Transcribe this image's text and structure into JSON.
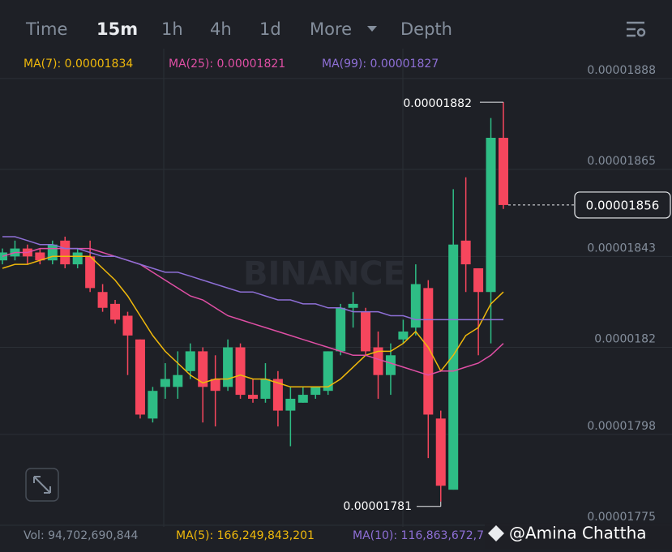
{
  "tabs": [
    "Time",
    "15m",
    "1h",
    "4h",
    "1d",
    "More",
    "Depth"
  ],
  "watermark": "BINANCE",
  "credit": "@Amina Chattha",
  "volume": {
    "vol": "Vol: 94,702,690,844",
    "ma5": "MA(5): 166,249,843,201",
    "ma10": "MA(10): 116,863,672,7"
  },
  "chart_data": {
    "type": "candlestick",
    "up_color": "#2ebd85",
    "down_color": "#f6465d",
    "ylim": [
      1.7746e-05,
      1.8935e-05
    ],
    "yticks": [
      1.888e-05,
      1.865e-05,
      1.843e-05,
      1.82e-05,
      1.798e-05,
      1.775e-05
    ],
    "grid": true,
    "open": [
      1.842e-05,
      1.843e-05,
      1.845e-05,
      1.844e-05,
      1.842e-05,
      1.847e-05,
      1.841e-05,
      1.843e-05,
      1.834e-05,
      1.831e-05,
      1.828e-05,
      1.822e-05,
      1.802e-05,
      1.81e-05,
      1.81e-05,
      1.814e-05,
      1.819e-05,
      1.812e-05,
      1.81e-05,
      1.82e-05,
      1.808e-05,
      1.807e-05,
      1.812e-05,
      1.804e-05,
      1.806e-05,
      1.808e-05,
      1.809e-05,
      1.819e-05,
      1.83e-05,
      1.829e-05,
      1.82e-05,
      1.813e-05,
      1.822e-05,
      1.825e-05,
      1.835e-05,
      1.802e-05,
      1.784e-05,
      1.847e-05,
      1.84e-05,
      1.834e-05,
      1.873e-05
    ],
    "close": [
      1.844e-05,
      1.845e-05,
      1.843e-05,
      1.842e-05,
      1.846e-05,
      1.841e-05,
      1.844e-05,
      1.835e-05,
      1.83e-05,
      1.827e-05,
      1.823e-05,
      1.803e-05,
      1.809e-05,
      1.812e-05,
      1.813e-05,
      1.819e-05,
      1.81e-05,
      1.809e-05,
      1.82e-05,
      1.808e-05,
      1.807e-05,
      1.812e-05,
      1.804e-05,
      1.807e-05,
      1.808e-05,
      1.81e-05,
      1.819e-05,
      1.83e-05,
      1.831e-05,
      1.819e-05,
      1.813e-05,
      1.818e-05,
      1.824e-05,
      1.836e-05,
      1.803e-05,
      1.785e-05,
      1.846e-05,
      1.841e-05,
      1.834e-05,
      1.873e-05,
      1.856e-05
    ],
    "high": [
      1.845e-05,
      1.847e-05,
      1.846e-05,
      1.845e-05,
      1.847e-05,
      1.848e-05,
      1.845e-05,
      1.847e-05,
      1.836e-05,
      1.832e-05,
      1.829e-05,
      1.822e-05,
      1.81e-05,
      1.816e-05,
      1.819e-05,
      1.821e-05,
      1.82e-05,
      1.818e-05,
      1.822e-05,
      1.821e-05,
      1.812e-05,
      1.816e-05,
      1.814e-05,
      1.81e-05,
      1.81e-05,
      1.81e-05,
      1.819e-05,
      1.831e-05,
      1.834e-05,
      1.83e-05,
      1.824e-05,
      1.821e-05,
      1.827e-05,
      1.841e-05,
      1.837e-05,
      1.804e-05,
      1.86e-05,
      1.863e-05,
      1.84e-05,
      1.878e-05,
      1.882e-05
    ],
    "low": [
      1.841e-05,
      1.842e-05,
      1.841e-05,
      1.841e-05,
      1.841e-05,
      1.84e-05,
      1.84e-05,
      1.834e-05,
      1.829e-05,
      1.826e-05,
      1.813e-05,
      1.802e-05,
      1.801e-05,
      1.807e-05,
      1.807e-05,
      1.812e-05,
      1.801e-05,
      1.8e-05,
      1.809e-05,
      1.807e-05,
      1.806e-05,
      1.806e-05,
      1.8e-05,
      1.795e-05,
      1.806e-05,
      1.807e-05,
      1.808e-05,
      1.818e-05,
      1.825e-05,
      1.818e-05,
      1.807e-05,
      1.808e-05,
      1.821e-05,
      1.823e-05,
      1.792e-05,
      1.781e-05,
      1.784e-05,
      1.834e-05,
      1.818e-05,
      1.821e-05,
      1.855e-05
    ],
    "series": [
      {
        "name": "MA(7): 0.00001834",
        "color": "#f0b90b",
        "values": [
          1.84e-05,
          1.841e-05,
          1.841e-05,
          1.842e-05,
          1.843e-05,
          1.843e-05,
          1.843e-05,
          1.843e-05,
          1.84e-05,
          1.837e-05,
          1.833e-05,
          1.828e-05,
          1.823e-05,
          1.819e-05,
          1.816e-05,
          1.813e-05,
          1.811e-05,
          1.812e-05,
          1.812e-05,
          1.813e-05,
          1.812e-05,
          1.812e-05,
          1.811e-05,
          1.81e-05,
          1.81e-05,
          1.81e-05,
          1.81e-05,
          1.812e-05,
          1.815e-05,
          1.818e-05,
          1.819e-05,
          1.819e-05,
          1.821e-05,
          1.824e-05,
          1.82e-05,
          1.814e-05,
          1.818e-05,
          1.823e-05,
          1.825e-05,
          1.831e-05,
          1.834e-05
        ]
      },
      {
        "name": "MA(25): 0.00001821",
        "color": "#e04fa5",
        "values": [
          1.843e-05,
          1.844e-05,
          1.844e-05,
          1.845e-05,
          1.845e-05,
          1.845e-05,
          1.845e-05,
          1.845e-05,
          1.844e-05,
          1.843e-05,
          1.842e-05,
          1.841e-05,
          1.839e-05,
          1.837e-05,
          1.835e-05,
          1.833e-05,
          1.832e-05,
          1.83e-05,
          1.828e-05,
          1.827e-05,
          1.826e-05,
          1.825e-05,
          1.824e-05,
          1.823e-05,
          1.822e-05,
          1.821e-05,
          1.82e-05,
          1.819e-05,
          1.818e-05,
          1.818e-05,
          1.817e-05,
          1.816e-05,
          1.815e-05,
          1.814e-05,
          1.813e-05,
          1.814e-05,
          1.814e-05,
          1.815e-05,
          1.816e-05,
          1.818e-05,
          1.821e-05
        ]
      },
      {
        "name": "MA(99): 0.00001827",
        "color": "#8e6fd6",
        "values": [
          1.848e-05,
          1.848e-05,
          1.847e-05,
          1.846e-05,
          1.846e-05,
          1.845e-05,
          1.845e-05,
          1.844e-05,
          1.843e-05,
          1.843e-05,
          1.842e-05,
          1.841e-05,
          1.84e-05,
          1.839e-05,
          1.839e-05,
          1.838e-05,
          1.837e-05,
          1.836e-05,
          1.835e-05,
          1.834e-05,
          1.834e-05,
          1.833e-05,
          1.832e-05,
          1.832e-05,
          1.831e-05,
          1.831e-05,
          1.83e-05,
          1.83e-05,
          1.829e-05,
          1.829e-05,
          1.829e-05,
          1.828e-05,
          1.828e-05,
          1.827e-05,
          1.827e-05,
          1.827e-05,
          1.827e-05,
          1.827e-05,
          1.827e-05,
          1.827e-05,
          1.827e-05
        ]
      }
    ]
  }
}
